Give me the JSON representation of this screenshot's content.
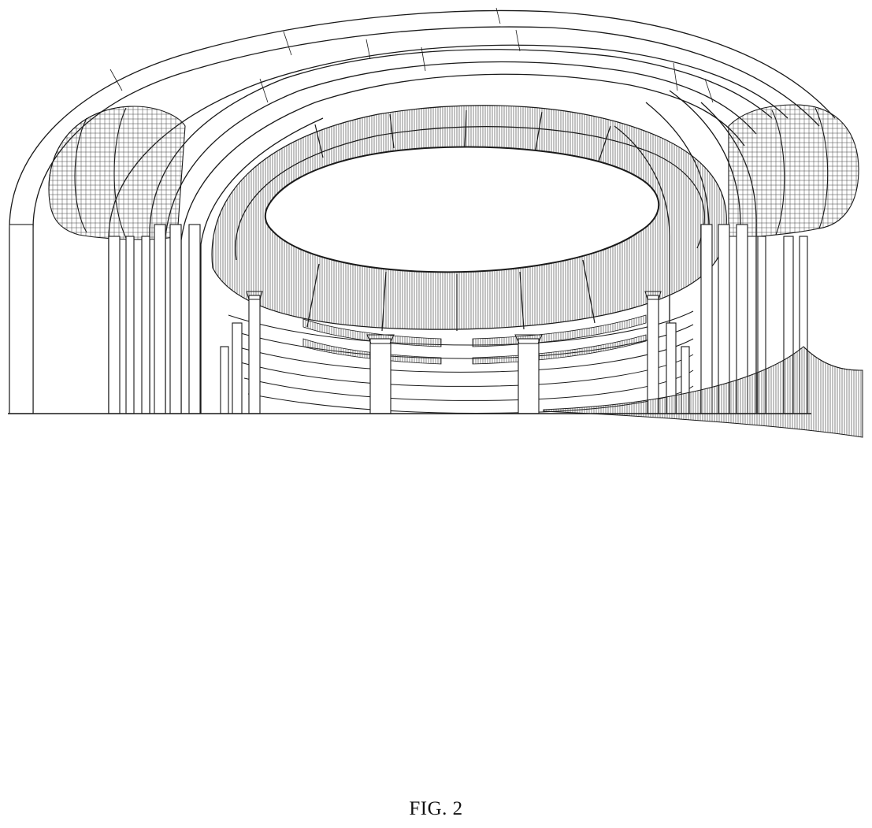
{
  "figure": {
    "caption": "FIG. 2"
  },
  "colors": {
    "line": "#1a1a1a",
    "background": "#ffffff"
  }
}
